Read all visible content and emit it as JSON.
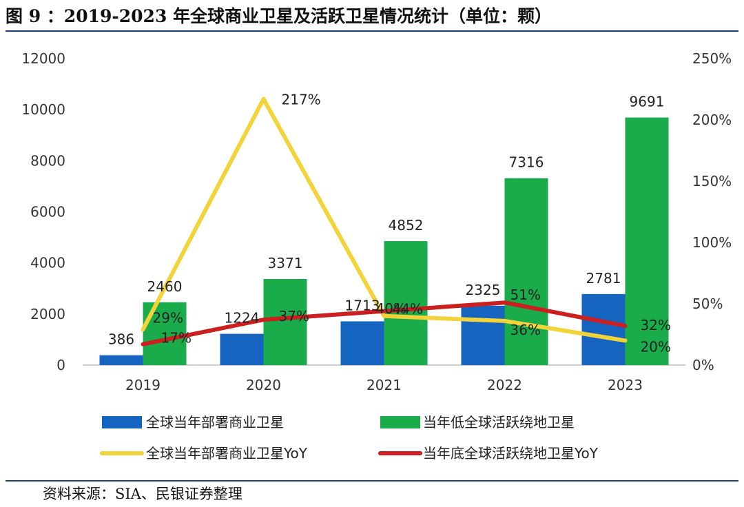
{
  "figure": {
    "title": "图 9 ：2019-2023 年全球商业卫星及活跃卫星情况统计（单位：颗）",
    "source": "资料来源：SIA、民银证券整理"
  },
  "chart_data": {
    "type": "bar",
    "categories": [
      "2019",
      "2020",
      "2021",
      "2022",
      "2023"
    ],
    "y_left": {
      "min": 0,
      "max": 12000,
      "ticks": [
        "0",
        "2000",
        "4000",
        "6000",
        "8000",
        "10000",
        "12000"
      ]
    },
    "y_right": {
      "min": 0,
      "max": 250,
      "ticks": [
        "0%",
        "50%",
        "100%",
        "150%",
        "200%",
        "250%"
      ]
    },
    "series": [
      {
        "name": "全球当年部署商业卫星",
        "kind": "bar",
        "axis": "left",
        "color": "#1565c0",
        "values": [
          386,
          1224,
          1713,
          2325,
          2781
        ],
        "labels": [
          "386",
          "1224",
          "1713",
          "2325",
          "2781"
        ]
      },
      {
        "name": "当年低全球活跃绕地卫星",
        "kind": "bar",
        "axis": "left",
        "color": "#1aab4b",
        "values": [
          2460,
          3371,
          4852,
          7316,
          9691
        ],
        "labels": [
          "2460",
          "3371",
          "4852",
          "7316",
          "9691"
        ]
      },
      {
        "name": "全球当年部署商业卫星YoY",
        "kind": "line",
        "axis": "right",
        "color": "#f2d43a",
        "values": [
          29,
          217,
          40,
          36,
          20
        ],
        "labels": [
          "29%",
          "217%",
          "40%",
          "36%",
          "20%"
        ]
      },
      {
        "name": "当年底全球活跃绕地卫星YoY",
        "kind": "line",
        "axis": "right",
        "color": "#cc1f1f",
        "values": [
          17,
          37,
          44,
          51,
          32
        ],
        "labels": [
          "17%",
          "37%",
          "44%",
          "51%",
          "32%"
        ]
      }
    ],
    "legend_position": "bottom"
  }
}
